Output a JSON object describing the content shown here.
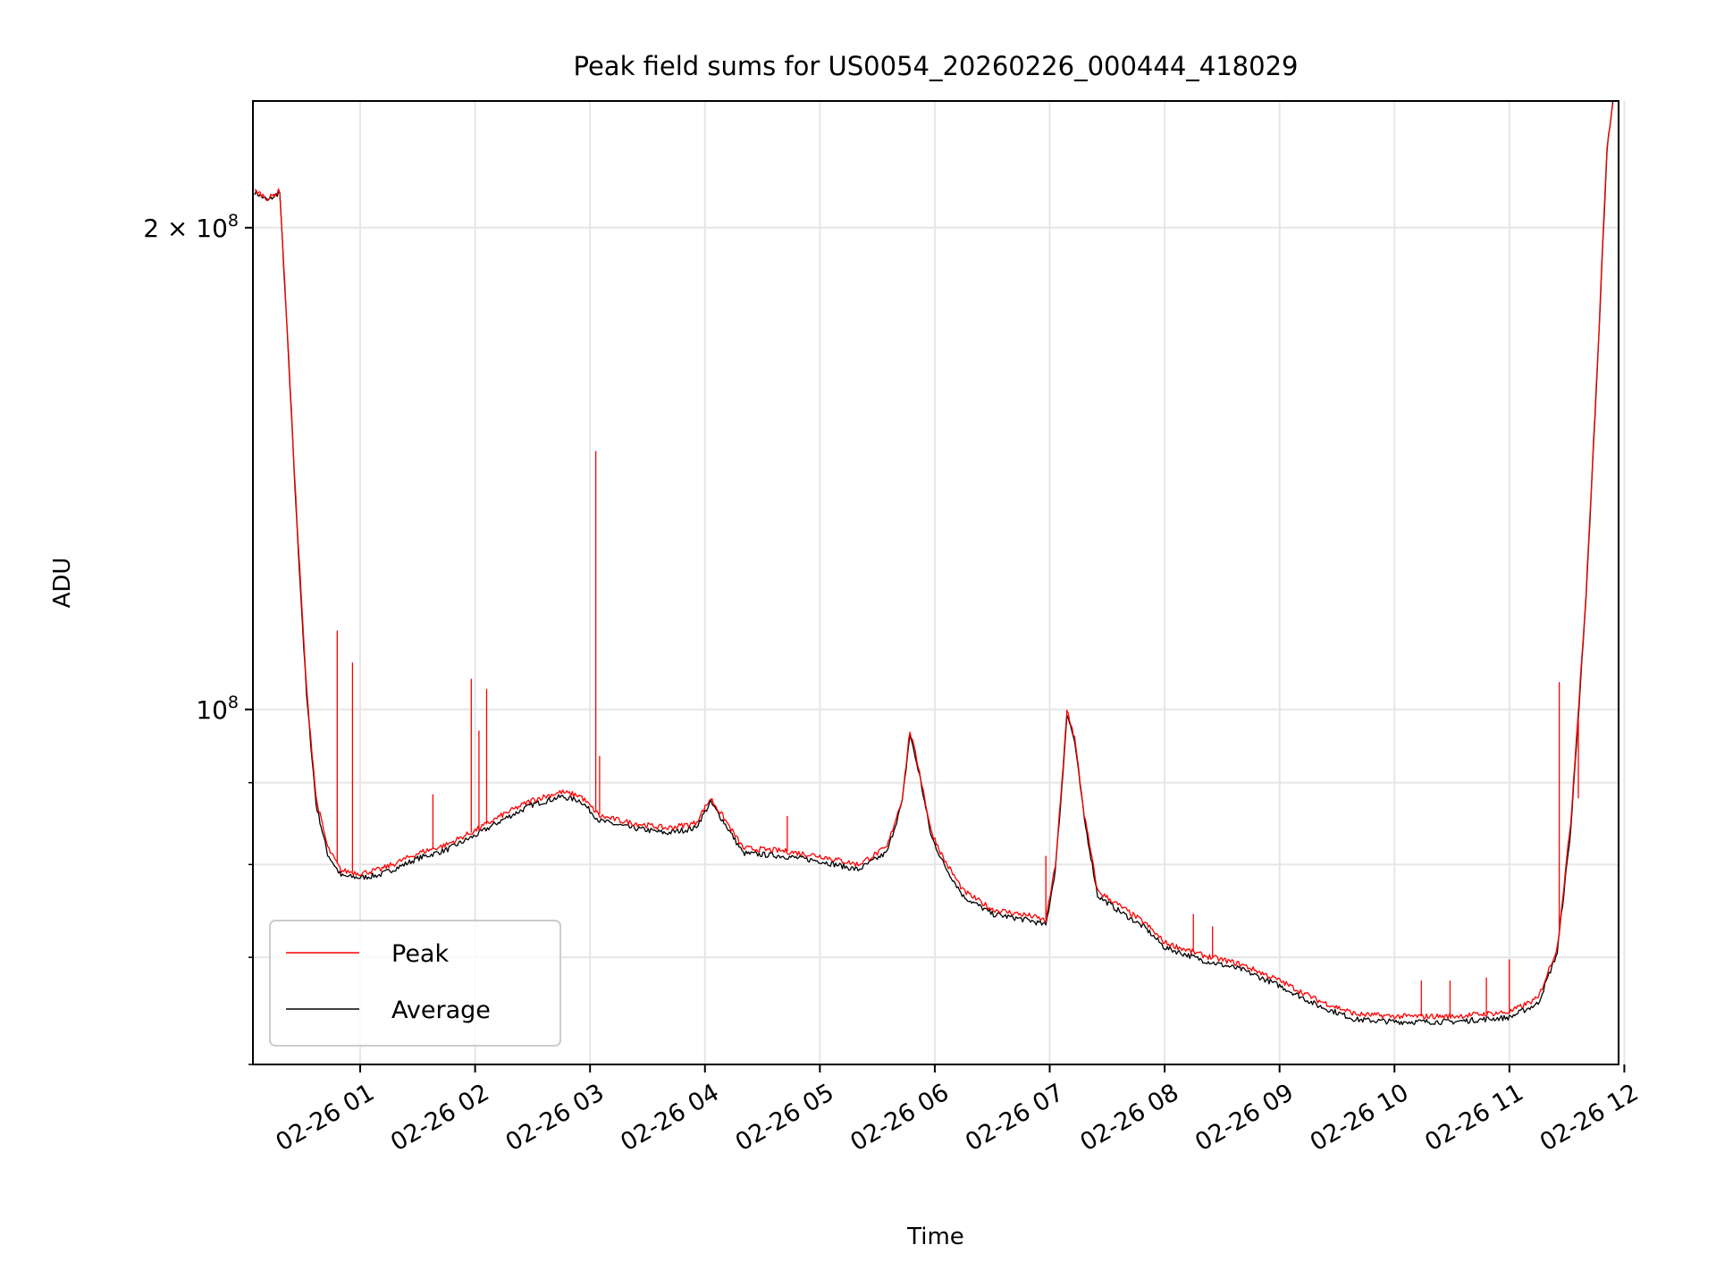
{
  "chart_data": {
    "type": "line",
    "title": "Peak field sums for US0054_20260226_000444_418029",
    "xlabel": "Time",
    "ylabel": "ADU",
    "y_scale": "log",
    "grid": true,
    "legend_position": "lower-left",
    "xlim": [
      "2026-02-26 00:04",
      "2026-02-26 11:57"
    ],
    "ylim": [
      60000000,
      240000000
    ],
    "x_ticks": [
      "2026-02-26 01:00",
      "2026-02-26 02:00",
      "2026-02-26 03:00",
      "2026-02-26 04:00",
      "2026-02-26 05:00",
      "2026-02-26 06:00",
      "2026-02-26 07:00",
      "2026-02-26 08:00",
      "2026-02-26 09:00",
      "2026-02-26 10:00",
      "2026-02-26 11:00",
      "2026-02-26 12:00"
    ],
    "x_tick_labels": [
      "02-26 01",
      "02-26 02",
      "02-26 03",
      "02-26 04",
      "02-26 05",
      "02-26 06",
      "02-26 07",
      "02-26 08",
      "02-26 09",
      "02-26 10",
      "02-26 11",
      "02-26 12"
    ],
    "y_major_ticks": [
      {
        "value": 100000000,
        "base": "10",
        "exp": "8",
        "mantissa": ""
      },
      {
        "value": 200000000,
        "base": "10",
        "exp": "8",
        "mantissa": "2"
      }
    ],
    "y_minor_ticks": [
      60000000,
      70000000,
      80000000,
      90000000
    ],
    "series": [
      {
        "name": "Peak",
        "color": "#ff0000",
        "points": [
          [
            "2026-02-26 00:05",
            211000000
          ],
          [
            "2026-02-26 00:12",
            208500000
          ],
          [
            "2026-02-26 00:18",
            211000000
          ],
          [
            "2026-02-26 00:22",
            172000000
          ],
          [
            "2026-02-26 00:27",
            131000000
          ],
          [
            "2026-02-26 00:32",
            103000000
          ],
          [
            "2026-02-26 00:37",
            88000000
          ],
          [
            "2026-02-26 00:43",
            82000000
          ],
          [
            "2026-02-26 00:50",
            79300000
          ],
          [
            "2026-02-26 01:00",
            79000000
          ],
          [
            "2026-02-26 01:10",
            79400000
          ],
          [
            "2026-02-26 01:20",
            80300000
          ],
          [
            "2026-02-26 01:30",
            81300000
          ],
          [
            "2026-02-26 01:45",
            82300000
          ],
          [
            "2026-02-26 02:00",
            84000000
          ],
          [
            "2026-02-26 02:15",
            86000000
          ],
          [
            "2026-02-26 02:30",
            87800000
          ],
          [
            "2026-02-26 02:45",
            88800000
          ],
          [
            "2026-02-26 02:55",
            88300000
          ],
          [
            "2026-02-26 03:05",
            85800000
          ],
          [
            "2026-02-26 03:20",
            85000000
          ],
          [
            "2026-02-26 03:40",
            84300000
          ],
          [
            "2026-02-26 03:55",
            84900000
          ],
          [
            "2026-02-26 04:03",
            88000000
          ],
          [
            "2026-02-26 04:10",
            85500000
          ],
          [
            "2026-02-26 04:20",
            81900000
          ],
          [
            "2026-02-26 04:40",
            81600000
          ],
          [
            "2026-02-26 05:00",
            81000000
          ],
          [
            "2026-02-26 05:20",
            80000000
          ],
          [
            "2026-02-26 05:35",
            82000000
          ],
          [
            "2026-02-26 05:43",
            88000000
          ],
          [
            "2026-02-26 05:47",
            97000000
          ],
          [
            "2026-02-26 05:52",
            91500000
          ],
          [
            "2026-02-26 05:58",
            84000000
          ],
          [
            "2026-02-26 06:05",
            80500000
          ],
          [
            "2026-02-26 06:15",
            77000000
          ],
          [
            "2026-02-26 06:30",
            75000000
          ],
          [
            "2026-02-26 06:50",
            74300000
          ],
          [
            "2026-02-26 06:58",
            73800000
          ],
          [
            "2026-02-26 07:03",
            80000000
          ],
          [
            "2026-02-26 07:07",
            92000000
          ],
          [
            "2026-02-26 07:09",
            100000000
          ],
          [
            "2026-02-26 07:13",
            96000000
          ],
          [
            "2026-02-26 07:18",
            86000000
          ],
          [
            "2026-02-26 07:25",
            77000000
          ],
          [
            "2026-02-26 07:35",
            75600000
          ],
          [
            "2026-02-26 07:50",
            73500000
          ],
          [
            "2026-02-26 08:00",
            71500000
          ],
          [
            "2026-02-26 08:20",
            70200000
          ],
          [
            "2026-02-26 08:40",
            69300000
          ],
          [
            "2026-02-26 09:00",
            67700000
          ],
          [
            "2026-02-26 09:20",
            65800000
          ],
          [
            "2026-02-26 09:40",
            64500000
          ],
          [
            "2026-02-26 10:00",
            64300000
          ],
          [
            "2026-02-26 10:30",
            64300000
          ],
          [
            "2026-02-26 11:00",
            64700000
          ],
          [
            "2026-02-26 11:15",
            66000000
          ],
          [
            "2026-02-26 11:25",
            71000000
          ],
          [
            "2026-02-26 11:32",
            85000000
          ],
          [
            "2026-02-26 11:40",
            118000000
          ],
          [
            "2026-02-26 11:46",
            165000000
          ],
          [
            "2026-02-26 11:51",
            225000000
          ],
          [
            "2026-02-26 11:54",
            240000000
          ]
        ],
        "spikes": [
          [
            "2026-02-26 00:48",
            112000000
          ],
          [
            "2026-02-26 00:56",
            107000000
          ],
          [
            "2026-02-26 01:38",
            88500000
          ],
          [
            "2026-02-26 01:58",
            104500000
          ],
          [
            "2026-02-26 02:02",
            97000000
          ],
          [
            "2026-02-26 02:06",
            103000000
          ],
          [
            "2026-02-26 03:03",
            145000000
          ],
          [
            "2026-02-26 03:05",
            93500000
          ],
          [
            "2026-02-26 04:43",
            85800000
          ],
          [
            "2026-02-26 06:58",
            81000000
          ],
          [
            "2026-02-26 08:15",
            74500000
          ],
          [
            "2026-02-26 08:25",
            73200000
          ],
          [
            "2026-02-26 10:14",
            67700000
          ],
          [
            "2026-02-26 10:29",
            67700000
          ],
          [
            "2026-02-26 10:48",
            68000000
          ],
          [
            "2026-02-26 11:00",
            69800000
          ],
          [
            "2026-02-26 11:26",
            104000000
          ],
          [
            "2026-02-26 11:36",
            88000000
          ]
        ]
      },
      {
        "name": "Average",
        "color": "#000000",
        "points": [
          [
            "2026-02-26 00:05",
            210500000
          ],
          [
            "2026-02-26 00:12",
            208000000
          ],
          [
            "2026-02-26 00:18",
            210500000
          ],
          [
            "2026-02-26 00:22",
            171000000
          ],
          [
            "2026-02-26 00:27",
            130000000
          ],
          [
            "2026-02-26 00:32",
            102000000
          ],
          [
            "2026-02-26 00:37",
            87200000
          ],
          [
            "2026-02-26 00:43",
            81200000
          ],
          [
            "2026-02-26 00:50",
            78700000
          ],
          [
            "2026-02-26 01:00",
            78500000
          ],
          [
            "2026-02-26 01:10",
            78800000
          ],
          [
            "2026-02-26 01:20",
            79700000
          ],
          [
            "2026-02-26 01:30",
            80700000
          ],
          [
            "2026-02-26 01:45",
            81700000
          ],
          [
            "2026-02-26 02:00",
            83400000
          ],
          [
            "2026-02-26 02:15",
            85400000
          ],
          [
            "2026-02-26 02:30",
            87200000
          ],
          [
            "2026-02-26 02:45",
            88200000
          ],
          [
            "2026-02-26 02:55",
            87700000
          ],
          [
            "2026-02-26 03:05",
            85200000
          ],
          [
            "2026-02-26 03:20",
            84400000
          ],
          [
            "2026-02-26 03:40",
            83700000
          ],
          [
            "2026-02-26 03:55",
            84300000
          ],
          [
            "2026-02-26 04:03",
            87500000
          ],
          [
            "2026-02-26 04:10",
            85000000
          ],
          [
            "2026-02-26 04:20",
            81300000
          ],
          [
            "2026-02-26 04:40",
            81000000
          ],
          [
            "2026-02-26 05:00",
            80400000
          ],
          [
            "2026-02-26 05:20",
            79400000
          ],
          [
            "2026-02-26 05:35",
            81400000
          ],
          [
            "2026-02-26 05:43",
            87500000
          ],
          [
            "2026-02-26 05:47",
            96500000
          ],
          [
            "2026-02-26 05:52",
            91000000
          ],
          [
            "2026-02-26 05:58",
            83400000
          ],
          [
            "2026-02-26 06:05",
            79900000
          ],
          [
            "2026-02-26 06:15",
            76400000
          ],
          [
            "2026-02-26 06:30",
            74500000
          ],
          [
            "2026-02-26 06:50",
            73800000
          ],
          [
            "2026-02-26 06:58",
            73300000
          ],
          [
            "2026-02-26 07:03",
            79500000
          ],
          [
            "2026-02-26 07:07",
            91500000
          ],
          [
            "2026-02-26 07:09",
            99500000
          ],
          [
            "2026-02-26 07:13",
            95500000
          ],
          [
            "2026-02-26 07:18",
            85500000
          ],
          [
            "2026-02-26 07:25",
            76500000
          ],
          [
            "2026-02-26 07:35",
            75000000
          ],
          [
            "2026-02-26 07:50",
            73000000
          ],
          [
            "2026-02-26 08:00",
            71000000
          ],
          [
            "2026-02-26 08:20",
            69700000
          ],
          [
            "2026-02-26 08:40",
            68800000
          ],
          [
            "2026-02-26 09:00",
            67200000
          ],
          [
            "2026-02-26 09:20",
            65300000
          ],
          [
            "2026-02-26 09:40",
            64000000
          ],
          [
            "2026-02-26 10:00",
            63800000
          ],
          [
            "2026-02-26 10:30",
            63800000
          ],
          [
            "2026-02-26 11:00",
            64200000
          ],
          [
            "2026-02-26 11:15",
            65500000
          ],
          [
            "2026-02-26 11:25",
            70500000
          ],
          [
            "2026-02-26 11:32",
            84000000
          ],
          [
            "2026-02-26 11:40",
            117000000
          ],
          [
            "2026-02-26 11:46",
            164000000
          ],
          [
            "2026-02-26 11:51",
            224000000
          ],
          [
            "2026-02-26 11:54",
            240000000
          ]
        ]
      }
    ]
  }
}
